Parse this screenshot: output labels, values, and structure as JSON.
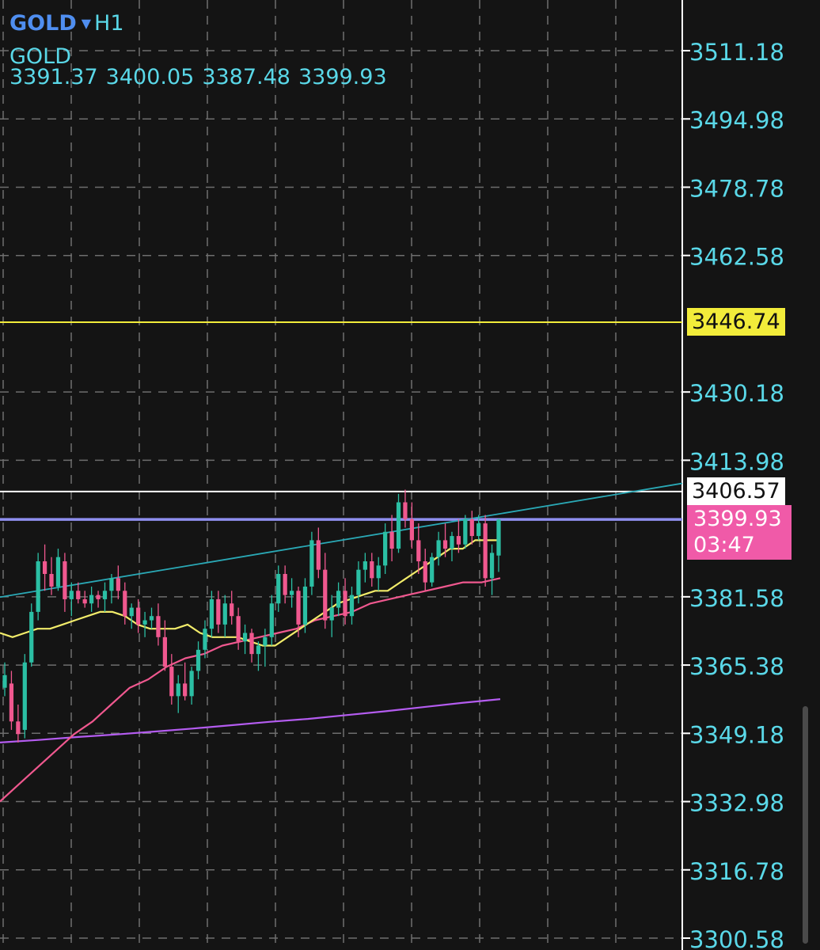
{
  "header": {
    "symbol": "GOLD",
    "timeframe": "H1",
    "symbol_name": "GOLD",
    "ohlc": [
      "3391.37",
      "3400.05",
      "3387.48",
      "3399.93"
    ]
  },
  "price_axis": {
    "labels": [
      "3511.18",
      "3494.98",
      "3478.78",
      "3462.58",
      "3430.18",
      "3413.98",
      "3381.58",
      "3365.38",
      "3349.18",
      "3332.98",
      "3316.78",
      "3300.58"
    ]
  },
  "price_tags": {
    "level_yellow": "3446.74",
    "level_white": "3406.57",
    "current_price": "3399.93",
    "countdown": "03:47"
  },
  "colors": {
    "background": "#141414",
    "grid": "#6e6e6e",
    "axis_text": "#5ad8e8",
    "bull": "#2bbfa4",
    "bear": "#f0588f",
    "ma_fast": "#f2ec6a",
    "ma_mid": "#f0588f",
    "ma_slow": "#b45cf0",
    "trendline": "#2aa9b6",
    "hline_yellow": "#f2ec3a",
    "hline_white": "#ffffff",
    "hline_current": "#8f8ff0"
  },
  "chart_data": {
    "type": "candlestick",
    "symbol": "GOLD",
    "timeframe": "H1",
    "ylim": [
      3300.58,
      3511.18
    ],
    "horizontal_lines": [
      3446.74,
      3406.57,
      3399.93
    ],
    "trendline": {
      "start": 3381.5,
      "end": 3408.5
    },
    "candles": [
      [
        3360,
        3366,
        3358,
        3363
      ],
      [
        3361,
        3364,
        3350,
        3352
      ],
      [
        3352,
        3356,
        3347,
        3349
      ],
      [
        3350,
        3368,
        3348,
        3366
      ],
      [
        3366,
        3380,
        3365,
        3378
      ],
      [
        3378,
        3392,
        3376,
        3390
      ],
      [
        3390,
        3394,
        3383,
        3387
      ],
      [
        3387,
        3391,
        3382,
        3384
      ],
      [
        3384,
        3393,
        3383,
        3391
      ],
      [
        3390,
        3392,
        3378,
        3381
      ],
      [
        3381,
        3385,
        3377,
        3383
      ],
      [
        3383,
        3385,
        3380,
        3381
      ],
      [
        3381,
        3383,
        3379,
        3380
      ],
      [
        3380,
        3384,
        3378,
        3382
      ],
      [
        3382,
        3383,
        3379,
        3381
      ],
      [
        3381,
        3385,
        3378,
        3383
      ],
      [
        3383,
        3387,
        3380,
        3386
      ],
      [
        3386,
        3389,
        3381,
        3383
      ],
      [
        3383,
        3385,
        3375,
        3377
      ],
      [
        3377,
        3380,
        3374,
        3379
      ],
      [
        3379,
        3381,
        3373,
        3375
      ],
      [
        3375,
        3378,
        3372,
        3376
      ],
      [
        3376,
        3379,
        3374,
        3377
      ],
      [
        3377,
        3380,
        3370,
        3372
      ],
      [
        3372,
        3376,
        3364,
        3365
      ],
      [
        3365,
        3368,
        3356,
        3358
      ],
      [
        3358,
        3363,
        3354,
        3361
      ],
      [
        3361,
        3366,
        3357,
        3358
      ],
      [
        3358,
        3365,
        3356,
        3364
      ],
      [
        3364,
        3371,
        3362,
        3369
      ],
      [
        3369,
        3376,
        3367,
        3374
      ],
      [
        3374,
        3383,
        3372,
        3381
      ],
      [
        3381,
        3383,
        3373,
        3375
      ],
      [
        3375,
        3382,
        3372,
        3380
      ],
      [
        3380,
        3383,
        3375,
        3377
      ],
      [
        3377,
        3379,
        3369,
        3371
      ],
      [
        3371,
        3375,
        3368,
        3373
      ],
      [
        3373,
        3374,
        3366,
        3368
      ],
      [
        3368,
        3371,
        3364,
        3370
      ],
      [
        3370,
        3374,
        3365,
        3372
      ],
      [
        3372,
        3382,
        3370,
        3380
      ],
      [
        3380,
        3389,
        3378,
        3387
      ],
      [
        3387,
        3389,
        3380,
        3382
      ],
      [
        3382,
        3386,
        3379,
        3383
      ],
      [
        3383,
        3384,
        3372,
        3375
      ],
      [
        3375,
        3386,
        3373,
        3384
      ],
      [
        3384,
        3397,
        3382,
        3395
      ],
      [
        3395,
        3398,
        3386,
        3388
      ],
      [
        3388,
        3392,
        3374,
        3376
      ],
      [
        3376,
        3382,
        3372,
        3379
      ],
      [
        3379,
        3385,
        3377,
        3383
      ],
      [
        3383,
        3386,
        3375,
        3377
      ],
      [
        3377,
        3384,
        3375,
        3382
      ],
      [
        3382,
        3390,
        3380,
        3388
      ],
      [
        3388,
        3392,
        3385,
        3390
      ],
      [
        3390,
        3392,
        3384,
        3386
      ],
      [
        3386,
        3391,
        3383,
        3389
      ],
      [
        3389,
        3399,
        3387,
        3397
      ],
      [
        3397,
        3401,
        3390,
        3393
      ],
      [
        3393,
        3406,
        3392,
        3404
      ],
      [
        3404,
        3407,
        3398,
        3400
      ],
      [
        3400,
        3404,
        3393,
        3395
      ],
      [
        3395,
        3399,
        3387,
        3390
      ],
      [
        3390,
        3393,
        3383,
        3385
      ],
      [
        3385,
        3392,
        3384,
        3391
      ],
      [
        3391,
        3397,
        3389,
        3395
      ],
      [
        3395,
        3399,
        3391,
        3393
      ],
      [
        3393,
        3397,
        3390,
        3396
      ],
      [
        3396,
        3400,
        3392,
        3394
      ],
      [
        3394,
        3401,
        3393,
        3400
      ],
      [
        3400,
        3402,
        3394,
        3396
      ],
      [
        3396,
        3401,
        3395,
        3399
      ],
      [
        3399,
        3401,
        3384,
        3386
      ],
      [
        3386,
        3394,
        3382,
        3392
      ],
      [
        3391.37,
        3400.05,
        3387.48,
        3399.93
      ]
    ],
    "ma_fast": [
      3373,
      3372,
      3373,
      3374,
      3374,
      3375,
      3376,
      3377,
      3378,
      3378,
      3377,
      3375,
      3374,
      3374,
      3374,
      3375,
      3373,
      3372,
      3372,
      3372,
      3371,
      3370,
      3370,
      3372,
      3374,
      3376,
      3378,
      3380,
      3381,
      3382,
      3383,
      3383,
      3385,
      3387,
      3389,
      3391,
      3393,
      3393,
      3395,
      3395,
      3395
    ],
    "ma_mid": [
      3333,
      3337,
      3341,
      3345,
      3349,
      3352,
      3356,
      3360,
      3362,
      3365,
      3367,
      3368,
      3370,
      3371,
      3372,
      3373,
      3374,
      3376,
      3377,
      3378,
      3380,
      3381,
      3382,
      3383,
      3384,
      3385,
      3385,
      3386
    ],
    "ma_slow": [
      3347,
      3347.6,
      3348.3,
      3348.9,
      3349.6,
      3350.3,
      3351.1,
      3351.9,
      3352.6,
      3353.5,
      3354.4,
      3355.4,
      3356.4,
      3357.3
    ]
  }
}
